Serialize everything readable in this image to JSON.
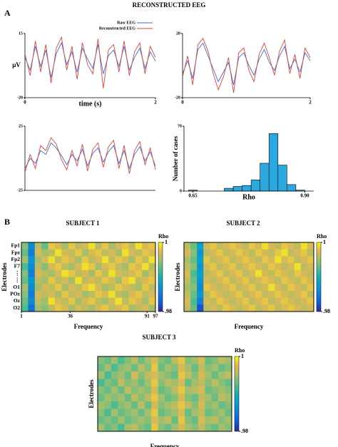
{
  "figure": {
    "title": "RECONSTRUCTED EEG",
    "panels": [
      "A",
      "B"
    ]
  },
  "chart_data": [
    {
      "type": "line",
      "ylabel": "μV",
      "xlabel": "time (s)",
      "xlim": [
        0,
        2
      ],
      "ylim": [
        -20,
        15
      ],
      "xticks": [
        0,
        2
      ],
      "yticks": [
        -20,
        15
      ],
      "x": [
        0,
        0.08,
        0.16,
        0.24,
        0.32,
        0.4,
        0.48,
        0.56,
        0.64,
        0.72,
        0.8,
        0.88,
        0.96,
        1.04,
        1.12,
        1.2,
        1.28,
        1.36,
        1.44,
        1.52,
        1.6,
        1.68,
        1.76,
        1.84,
        1.92,
        2
      ],
      "series": [
        {
          "name": "Raw EEG",
          "color": "#3b6fd9",
          "values": [
            2,
            -5,
            8,
            -3,
            6,
            -9,
            4,
            10,
            -2,
            5,
            -6,
            7,
            1,
            -4,
            9,
            -7,
            3,
            6,
            -3,
            8,
            -5,
            2,
            7,
            -4,
            5,
            0
          ]
        },
        {
          "name": "Reconstructed EEG",
          "color": "#e4453a",
          "values": [
            4,
            -8,
            11,
            -6,
            9,
            -12,
            7,
            13,
            -5,
            8,
            -10,
            10,
            -2,
            -7,
            12,
            -15,
            6,
            9,
            -6,
            11,
            -8,
            5,
            10,
            -7,
            8,
            2
          ]
        }
      ]
    },
    {
      "type": "line",
      "xlim": [
        0,
        2
      ],
      "ylim": [
        -20,
        20
      ],
      "xticks": [
        0,
        2
      ],
      "yticks": [
        -20,
        20
      ],
      "x": [
        0,
        0.08,
        0.16,
        0.24,
        0.32,
        0.4,
        0.48,
        0.56,
        0.64,
        0.72,
        0.8,
        0.88,
        0.96,
        1.04,
        1.12,
        1.2,
        1.28,
        1.36,
        1.44,
        1.52,
        1.6,
        1.68,
        1.76,
        1.84,
        1.92,
        2
      ],
      "series": [
        {
          "color": "#3b6fd9",
          "values": [
            -5,
            3,
            -8,
            10,
            14,
            6,
            -2,
            -10,
            -4,
            2,
            -12,
            5,
            8,
            0,
            -6,
            4,
            10,
            2,
            -3,
            6,
            12,
            -2,
            4,
            -4,
            8,
            3
          ]
        },
        {
          "color": "#e4453a",
          "values": [
            -7,
            6,
            -12,
            13,
            17,
            9,
            -5,
            -15,
            -7,
            5,
            -17,
            8,
            11,
            -3,
            -10,
            7,
            14,
            5,
            -6,
            9,
            16,
            -5,
            7,
            -8,
            11,
            5
          ]
        }
      ]
    },
    {
      "type": "line",
      "xlim": [
        0,
        2
      ],
      "ylim": [
        -25,
        25
      ],
      "yticks": [
        -25,
        25
      ],
      "x": [
        0,
        0.08,
        0.16,
        0.24,
        0.32,
        0.4,
        0.48,
        0.56,
        0.64,
        0.72,
        0.8,
        0.88,
        0.96,
        1.04,
        1.12,
        1.2,
        1.28,
        1.36,
        1.44,
        1.52,
        1.6,
        1.68,
        1.76,
        1.84,
        1.92,
        2
      ],
      "series": [
        {
          "color": "#3b6fd9",
          "values": [
            -8,
            0,
            -4,
            6,
            3,
            12,
            8,
            2,
            -5,
            3,
            -2,
            7,
            -6,
            4,
            8,
            -3,
            5,
            10,
            -4,
            6,
            -8,
            3,
            9,
            -2,
            5,
            -6
          ]
        },
        {
          "color": "#e4453a",
          "values": [
            -11,
            3,
            -8,
            10,
            6,
            16,
            11,
            -1,
            -9,
            6,
            -6,
            11,
            -10,
            7,
            12,
            -7,
            9,
            14,
            -8,
            10,
            -12,
            6,
            13,
            -5,
            8,
            -9
          ]
        }
      ]
    },
    {
      "type": "histogram",
      "xlabel": "Rho",
      "ylabel": "Number of cases",
      "color": "#29a9e0",
      "xlim": [
        0.63,
        0.92
      ],
      "ylim": [
        0,
        70
      ],
      "xticks": [
        0.65,
        {
          "value": 0.9,
          "label": "0.90"
        }
      ],
      "yticks": [
        0,
        70
      ],
      "bins": [
        0.64,
        0.66,
        0.68,
        0.7,
        0.72,
        0.74,
        0.76,
        0.78,
        0.8,
        0.82,
        0.84,
        0.86,
        0.88,
        0.9
      ],
      "values": [
        1,
        0,
        0,
        0,
        3,
        5,
        6,
        12,
        30,
        62,
        28,
        7,
        1
      ]
    },
    {
      "type": "heatmap",
      "title": "SUBJECT 1",
      "xlabel": "Frequency",
      "ylabel": "Electrodes",
      "clabel": "Rho",
      "clim": [
        0.98,
        1
      ],
      "cticks": [
        1,
        {
          "value": 0.98,
          "label": ".98"
        }
      ],
      "xlim": [
        1,
        97
      ],
      "xticks": [
        1,
        36,
        91,
        97
      ],
      "row_labels": [
        "Fp1",
        "Fpz",
        "Fp2",
        "F7",
        "⋮",
        "⋮",
        "O1",
        "POz",
        "Oz",
        "O2"
      ],
      "values": [
        [
          0.994,
          0.986,
          0.996,
          0.993,
          0.998,
          0.997,
          0.995,
          0.998,
          0.996,
          0.997,
          0.999,
          0.996,
          0.998,
          0.995,
          0.997,
          0.998,
          0.996,
          0.999,
          0.997,
          0.998
        ],
        [
          0.993,
          0.985,
          0.997,
          0.995,
          0.996,
          0.999,
          0.997,
          0.996,
          0.998,
          0.995,
          0.997,
          0.998,
          0.996,
          0.997,
          0.995,
          0.999,
          0.997,
          0.996,
          0.998,
          0.997
        ],
        [
          0.995,
          0.987,
          0.995,
          0.997,
          0.999,
          0.996,
          0.998,
          0.997,
          0.995,
          0.998,
          0.996,
          0.997,
          0.999,
          0.996,
          0.998,
          0.997,
          0.995,
          0.998,
          0.996,
          0.999
        ],
        [
          0.992,
          0.986,
          0.996,
          0.994,
          0.997,
          0.998,
          0.996,
          0.995,
          0.997,
          0.999,
          0.998,
          0.995,
          0.997,
          0.998,
          0.996,
          0.995,
          0.998,
          0.997,
          0.999,
          0.996
        ],
        [
          0.994,
          0.985,
          0.997,
          0.996,
          0.995,
          0.997,
          0.999,
          0.998,
          0.996,
          0.997,
          0.995,
          0.998,
          0.996,
          0.999,
          0.997,
          0.996,
          0.997,
          0.998,
          0.995,
          0.997
        ],
        [
          0.993,
          0.987,
          0.996,
          0.995,
          0.998,
          0.996,
          0.997,
          0.995,
          0.999,
          0.996,
          0.997,
          0.996,
          0.998,
          0.997,
          0.995,
          0.998,
          0.999,
          0.996,
          0.997,
          0.998
        ],
        [
          0.995,
          0.986,
          0.995,
          0.997,
          0.996,
          0.998,
          0.995,
          0.997,
          0.996,
          0.998,
          0.999,
          0.997,
          0.995,
          0.996,
          0.998,
          0.997,
          0.996,
          0.995,
          0.998,
          0.996
        ],
        [
          0.994,
          0.985,
          0.997,
          0.996,
          0.997,
          0.995,
          0.998,
          0.996,
          0.997,
          0.995,
          0.996,
          0.998,
          0.997,
          0.999,
          0.996,
          0.995,
          0.997,
          0.998,
          0.996,
          0.997
        ],
        [
          0.993,
          0.986,
          0.996,
          0.995,
          0.999,
          0.997,
          0.996,
          0.998,
          0.995,
          0.997,
          0.998,
          0.996,
          0.995,
          0.997,
          0.999,
          0.996,
          0.998,
          0.997,
          0.995,
          0.998
        ],
        [
          0.992,
          0.984,
          0.995,
          0.994,
          0.996,
          0.998,
          0.997,
          0.995,
          0.997,
          0.996,
          0.995,
          0.997,
          0.998,
          0.996,
          0.997,
          0.998,
          0.995,
          0.996,
          0.997,
          0.995
        ]
      ]
    },
    {
      "type": "heatmap",
      "title": "SUBJECT 2",
      "xlabel": "Frequency",
      "ylabel": "Electrodes",
      "clabel": "Rho",
      "clim": [
        0.98,
        1
      ],
      "cticks": [
        1,
        {
          "value": 0.98,
          "label": ".98"
        }
      ],
      "values": [
        [
          0.996,
          0.993,
          0.988,
          0.997,
          0.998,
          0.996,
          0.997,
          0.998,
          0.997,
          0.996,
          0.998,
          0.997,
          0.999,
          0.997,
          0.996,
          0.998,
          0.997,
          0.996,
          0.999,
          0.997
        ],
        [
          0.997,
          0.994,
          0.987,
          0.996,
          0.997,
          0.998,
          0.996,
          0.997,
          0.998,
          0.997,
          0.996,
          0.998,
          0.997,
          0.996,
          0.998,
          0.999,
          0.996,
          0.997,
          0.998,
          0.996
        ],
        [
          0.995,
          0.993,
          0.988,
          0.998,
          0.996,
          0.997,
          0.998,
          0.996,
          0.997,
          0.998,
          0.997,
          0.996,
          0.998,
          0.997,
          0.999,
          0.997,
          0.998,
          0.996,
          0.997,
          0.998
        ],
        [
          0.996,
          0.994,
          0.987,
          0.997,
          0.998,
          0.996,
          0.997,
          0.998,
          0.996,
          0.997,
          0.998,
          0.997,
          0.996,
          0.998,
          0.997,
          0.996,
          0.997,
          0.999,
          0.996,
          0.997
        ],
        [
          0.997,
          0.992,
          0.988,
          0.996,
          0.997,
          0.998,
          0.996,
          0.997,
          0.998,
          0.996,
          0.997,
          0.999,
          0.997,
          0.996,
          0.998,
          0.997,
          0.996,
          0.998,
          0.997,
          0.996
        ],
        [
          0.996,
          0.993,
          0.987,
          0.997,
          0.996,
          0.997,
          0.998,
          0.996,
          0.997,
          0.998,
          0.996,
          0.997,
          0.998,
          0.997,
          0.996,
          0.998,
          0.997,
          0.996,
          0.998,
          0.997
        ],
        [
          0.995,
          0.994,
          0.986,
          0.998,
          0.997,
          0.996,
          0.997,
          0.998,
          0.996,
          0.997,
          0.998,
          0.996,
          0.997,
          0.999,
          0.997,
          0.996,
          0.998,
          0.997,
          0.996,
          0.998
        ],
        [
          0.996,
          0.993,
          0.987,
          0.996,
          0.998,
          0.997,
          0.996,
          0.997,
          0.998,
          0.996,
          0.997,
          0.998,
          0.996,
          0.997,
          0.998,
          0.997,
          0.996,
          0.997,
          0.998,
          0.996
        ],
        [
          0.997,
          0.992,
          0.985,
          0.997,
          0.996,
          0.998,
          0.997,
          0.996,
          0.997,
          0.998,
          0.996,
          0.997,
          0.998,
          0.996,
          0.997,
          0.998,
          0.997,
          0.996,
          0.997,
          0.998
        ],
        [
          0.996,
          0.993,
          0.982,
          0.996,
          0.997,
          0.996,
          0.998,
          0.997,
          0.996,
          0.997,
          0.998,
          0.996,
          0.997,
          0.998,
          0.996,
          0.997,
          0.998,
          0.997,
          0.996,
          0.997
        ]
      ]
    },
    {
      "type": "heatmap",
      "title": "SUBJECT 3",
      "xlabel": "Frequency",
      "ylabel": "Electrodes",
      "clabel": "Rho",
      "clim": [
        0.98,
        1
      ],
      "cticks": [
        1,
        {
          "value": 0.98,
          "label": ".98"
        }
      ],
      "values": [
        [
          0.994,
          0.993,
          0.995,
          0.992,
          0.994,
          0.996,
          0.993,
          0.995,
          0.997,
          0.994,
          0.993,
          0.996,
          0.998,
          0.994,
          0.995,
          0.997,
          0.993,
          0.994,
          0.996,
          0.995
        ],
        [
          0.993,
          0.995,
          0.992,
          0.994,
          0.995,
          0.993,
          0.996,
          0.994,
          0.998,
          0.993,
          0.995,
          0.994,
          0.997,
          0.995,
          0.993,
          0.996,
          0.994,
          0.995,
          0.993,
          0.994
        ],
        [
          0.995,
          0.992,
          0.994,
          0.995,
          0.993,
          0.997,
          0.994,
          0.996,
          0.997,
          0.995,
          0.994,
          0.993,
          0.998,
          0.996,
          0.994,
          0.997,
          0.995,
          0.993,
          0.995,
          0.996
        ],
        [
          0.992,
          0.994,
          0.993,
          0.996,
          0.994,
          0.995,
          0.993,
          0.995,
          0.998,
          0.994,
          0.996,
          0.995,
          0.997,
          0.993,
          0.995,
          0.996,
          0.994,
          0.996,
          0.994,
          0.993
        ],
        [
          0.994,
          0.993,
          0.995,
          0.993,
          0.996,
          0.994,
          0.995,
          0.994,
          0.997,
          0.993,
          0.994,
          0.996,
          0.998,
          0.995,
          0.996,
          0.997,
          0.993,
          0.994,
          0.995,
          0.994
        ],
        [
          0.993,
          0.995,
          0.994,
          0.995,
          0.993,
          0.996,
          0.994,
          0.996,
          0.998,
          0.995,
          0.993,
          0.994,
          0.997,
          0.994,
          0.993,
          0.996,
          0.995,
          0.993,
          0.996,
          0.995
        ],
        [
          0.995,
          0.994,
          0.992,
          0.994,
          0.995,
          0.993,
          0.996,
          0.993,
          0.997,
          0.994,
          0.995,
          0.996,
          0.998,
          0.996,
          0.994,
          0.997,
          0.994,
          0.995,
          0.993,
          0.994
        ],
        [
          0.994,
          0.992,
          0.995,
          0.993,
          0.994,
          0.995,
          0.993,
          0.995,
          0.998,
          0.993,
          0.994,
          0.995,
          0.997,
          0.993,
          0.995,
          0.996,
          0.993,
          0.994,
          0.995,
          0.993
        ],
        [
          0.993,
          0.994,
          0.993,
          0.995,
          0.993,
          0.994,
          0.995,
          0.994,
          0.997,
          0.995,
          0.996,
          0.993,
          0.998,
          0.994,
          0.993,
          0.997,
          0.995,
          0.996,
          0.994,
          0.995
        ],
        [
          0.995,
          0.993,
          0.994,
          0.992,
          0.995,
          0.996,
          0.994,
          0.993,
          0.998,
          0.994,
          0.993,
          0.995,
          0.997,
          0.995,
          0.994,
          0.996,
          0.994,
          0.993,
          0.995,
          0.994
        ]
      ]
    }
  ]
}
